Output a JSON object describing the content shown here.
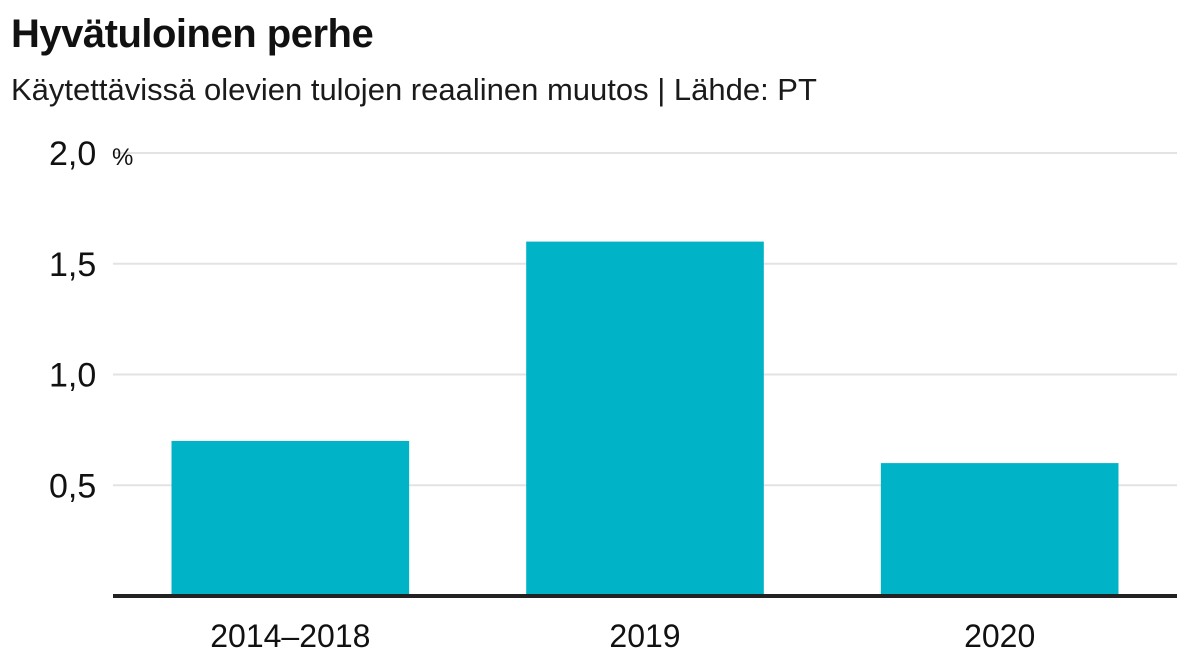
{
  "chart_data": {
    "type": "bar",
    "title": "Hyvätuloinen perhe",
    "subtitle": "Käytettävissä olevien tulojen reaalinen muutos | Lähde: PT",
    "categories": [
      "2014–2018",
      "2019",
      "2020"
    ],
    "values": [
      0.7,
      1.6,
      0.6
    ],
    "ylim": [
      0,
      2.0
    ],
    "yticks": [
      0.5,
      1.0,
      1.5,
      2.0
    ],
    "ytick_labels": [
      "0,5",
      "1,0",
      "1,5",
      "2,0"
    ],
    "yunit": "%",
    "grid": true,
    "bar_color": "#00b3c6",
    "grid_color": "#e3e3e3",
    "axis_color": "#222222"
  }
}
